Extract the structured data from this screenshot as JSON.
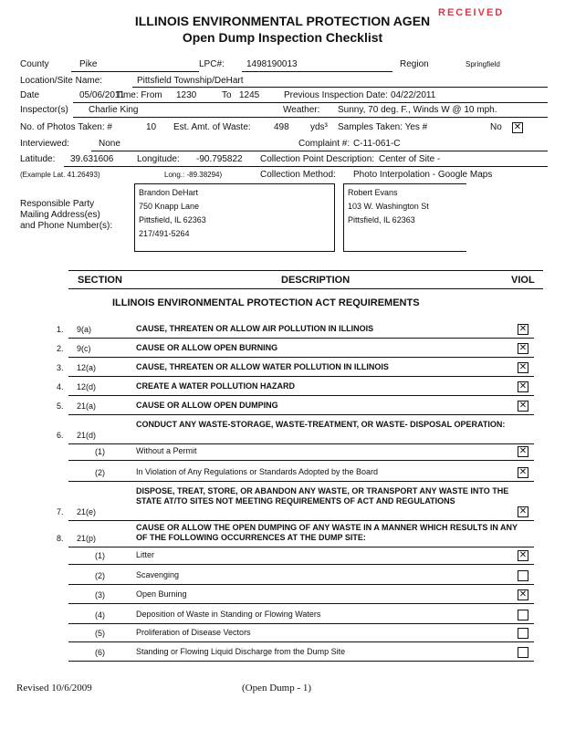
{
  "title": "ILLINOIS ENVIRONMENTAL PROTECTION AGEN",
  "subtitle": "Open Dump Inspection Checklist",
  "stamp": "RECEIVED",
  "fields": {
    "county_label": "County",
    "county": "Pike",
    "lpc_label": "LPC#:",
    "lpc": "1498190013",
    "region_label": "Region",
    "region": "Springfield",
    "location_label": "Location/Site Name:",
    "location": "Pittsfield Township/DeHart",
    "date_label": "Date",
    "date": "05/06/2011",
    "time_label": "Time:  From",
    "time_from": "1230",
    "to_label": "To",
    "time_to": "1245",
    "prev_label": "Previous Inspection Date:",
    "prev_date": "04/22/2011",
    "inspector_label": "Inspector(s)",
    "inspector": "Charlie King",
    "weather_label": "Weather:",
    "weather": "Sunny, 70 deg. F., Winds W @ 10 mph.",
    "photos_label": "No. of Photos Taken: #",
    "photos": "10",
    "waste_label": "Est. Amt. of Waste:",
    "waste": "498",
    "waste_unit": "yds³",
    "samples_label": "Samples Taken:  Yes #",
    "no_label": "No",
    "interviewed_label": "Interviewed:",
    "interviewed": "None",
    "complaint_label": "Complaint #:",
    "complaint": "C-11-061-C",
    "lat_label": "Latitude:",
    "lat": "39.631606",
    "lon_label": "Longitude:",
    "lon": "-90.795822",
    "cpd_label": "Collection Point Description:",
    "cpd": "Center of Site -",
    "lat_example": "(Example    Lat.  41.26493)",
    "lon_example": "Long.: -89.38294)",
    "method_label": "Collection Method:",
    "method": "Photo Interpolation - Google Maps",
    "party_label": [
      "Responsible Party",
      "Mailing Address(es)",
      "and Phone Number(s):"
    ],
    "party1": [
      "Brandon DeHart",
      "750 Knapp Lane",
      "Pittsfield, IL 62363",
      "217/491-5264"
    ],
    "party2": [
      "Robert Evans",
      "103 W. Washington St",
      "Pittsfield, IL  62363"
    ]
  },
  "table": {
    "section": "SECTION",
    "description": "DESCRIPTION",
    "viol": "VIOL",
    "heading": "ILLINOIS ENVIRONMENTAL PROTECTION ACT REQUIREMENTS",
    "rows": [
      {
        "num": "1.",
        "sec": "9(a)",
        "desc": "CAUSE, THREATEN OR ALLOW AIR POLLUTION IN ILLINOIS",
        "checked": true
      },
      {
        "num": "2.",
        "sec": "9(c)",
        "desc": "CAUSE OR ALLOW OPEN BURNING",
        "checked": true
      },
      {
        "num": "3.",
        "sec": "12(a)",
        "desc": "CAUSE, THREATEN OR ALLOW WATER POLLUTION IN ILLINOIS",
        "checked": true
      },
      {
        "num": "4.",
        "sec": "12(d)",
        "desc": "CREATE A WATER POLLUTION HAZARD",
        "checked": true
      },
      {
        "num": "5.",
        "sec": "21(a)",
        "desc": "CAUSE OR ALLOW OPEN DUMPING",
        "checked": true
      },
      {
        "num": "6.",
        "sec": "21(d)",
        "desc": "CONDUCT ANY WASTE-STORAGE, WASTE-TREATMENT, OR WASTE- DISPOSAL OPERATION:",
        "checked": null
      },
      {
        "num": "",
        "sec": "(1)",
        "desc": "Without a Permit",
        "checked": true
      },
      {
        "num": "",
        "sec": "(2)",
        "desc": "In Violation of Any Regulations or Standards Adopted by the Board",
        "checked": true
      },
      {
        "num": "7.",
        "sec": "21(e)",
        "desc": "DISPOSE, TREAT, STORE, OR ABANDON ANY WASTE, OR TRANSPORT ANY WASTE INTO THE STATE AT/TO SITES NOT MEETING REQUIREMENTS OF ACT AND REGULATIONS",
        "checked": true
      },
      {
        "num": "8.",
        "sec": "21(p)",
        "desc": "CAUSE OR ALLOW THE OPEN DUMPING OF ANY WASTE IN A MANNER WHICH RESULTS IN ANY OF THE FOLLOWING OCCURRENCES AT THE DUMP SITE:",
        "checked": null
      },
      {
        "num": "",
        "sec": "(1)",
        "desc": "Litter",
        "checked": true
      },
      {
        "num": "",
        "sec": "(2)",
        "desc": "Scavenging",
        "checked": false
      },
      {
        "num": "",
        "sec": "(3)",
        "desc": "Open Burning",
        "checked": true
      },
      {
        "num": "",
        "sec": "(4)",
        "desc": "Deposition of Waste in Standing or Flowing Waters",
        "checked": false
      },
      {
        "num": "",
        "sec": "(5)",
        "desc": "Proliferation of Disease Vectors",
        "checked": false
      },
      {
        "num": "",
        "sec": "(6)",
        "desc": "Standing or Flowing Liquid Discharge from the Dump Site",
        "checked": false
      }
    ]
  },
  "footer": {
    "revised": "Revised 10/6/2009",
    "page": "(Open Dump - 1)"
  }
}
